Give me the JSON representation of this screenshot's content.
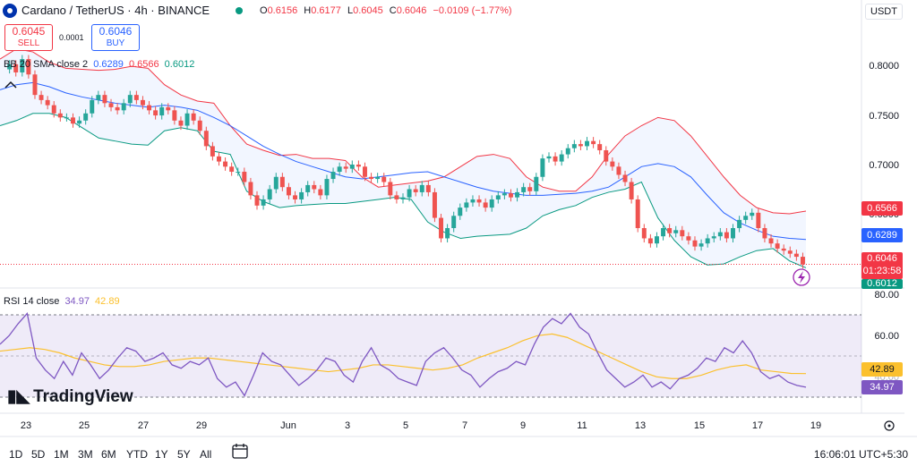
{
  "header": {
    "symbol": "Cardano / TetherUS · 4h · BINANCE",
    "open_label": "O",
    "open": "0.6156",
    "high_label": "H",
    "high": "0.6177",
    "low_label": "L",
    "low": "0.6045",
    "close_label": "C",
    "close": "0.6046",
    "change": "−0.0109 (−1.77%)",
    "currency": "USDT"
  },
  "trade": {
    "sell_price": "0.6045",
    "sell_label": "SELL",
    "spread": "0.0001",
    "buy_price": "0.6046",
    "buy_label": "BUY"
  },
  "bb": {
    "label": "BB 20 SMA close 2",
    "basis": "0.6289",
    "upper": "0.6566",
    "lower": "0.6012"
  },
  "rsi": {
    "label": "RSI 14 close",
    "value": "34.97",
    "ma": "42.89"
  },
  "price_axis": [
    "0.8000",
    "0.7500",
    "0.7000",
    "0.6500"
  ],
  "price_tags": {
    "upper": "0.6566",
    "basis": "0.6289",
    "last": "0.6046",
    "countdown": "01:23:58",
    "lower": "0.6012"
  },
  "rsi_axis": [
    "80.00",
    "60.00",
    "40.00"
  ],
  "x_axis": [
    "23",
    "25",
    "27",
    "29",
    "Jun",
    "3",
    "5",
    "7",
    "9",
    "11",
    "13",
    "15",
    "17",
    "19"
  ],
  "logo": "TradingView",
  "timeframes": [
    "1D",
    "5D",
    "1M",
    "3M",
    "6M",
    "YTD",
    "1Y",
    "5Y",
    "All"
  ],
  "clock": "16:06:01 UTC+5:30",
  "colors": {
    "up": "#26a69a",
    "down": "#ef5350",
    "basis": "#2962ff",
    "upper": "#f23645",
    "lower": "#089981",
    "rsi": "#7e57c2",
    "rsi_ma": "#fbc02d"
  },
  "chart_data": {
    "type": "line",
    "title": "Cardano / TetherUS · 4h · BINANCE",
    "price_ylim": [
      0.585,
      0.84
    ],
    "rsi_ylim": [
      25,
      85
    ],
    "x": [
      "23",
      "25",
      "27",
      "29",
      "Jun",
      "3",
      "5",
      "7",
      "9",
      "11",
      "13",
      "15",
      "17",
      "19"
    ],
    "candles_close": [
      0.795,
      0.8,
      0.792,
      0.805,
      0.79,
      0.77,
      0.765,
      0.76,
      0.752,
      0.748,
      0.748,
      0.742,
      0.745,
      0.752,
      0.765,
      0.77,
      0.762,
      0.758,
      0.755,
      0.762,
      0.77,
      0.765,
      0.76,
      0.755,
      0.75,
      0.758,
      0.755,
      0.745,
      0.74,
      0.752,
      0.745,
      0.735,
      0.72,
      0.71,
      0.705,
      0.7,
      0.695,
      0.695,
      0.685,
      0.672,
      0.662,
      0.668,
      0.678,
      0.69,
      0.68,
      0.672,
      0.668,
      0.675,
      0.682,
      0.678,
      0.672,
      0.688,
      0.695,
      0.7,
      0.698,
      0.702,
      0.7,
      0.69,
      0.688,
      0.69,
      0.685,
      0.672,
      0.668,
      0.67,
      0.678,
      0.675,
      0.682,
      0.675,
      0.65,
      0.63,
      0.64,
      0.652,
      0.66,
      0.665,
      0.668,
      0.665,
      0.66,
      0.668,
      0.672,
      0.674,
      0.67,
      0.675,
      0.68,
      0.676,
      0.69,
      0.708,
      0.71,
      0.705,
      0.712,
      0.718,
      0.722,
      0.72,
      0.725,
      0.722,
      0.716,
      0.705,
      0.7,
      0.692,
      0.685,
      0.668,
      0.64,
      0.63,
      0.625,
      0.632,
      0.64,
      0.635,
      0.638,
      0.632,
      0.628,
      0.622,
      0.625,
      0.63,
      0.632,
      0.636,
      0.63,
      0.64,
      0.648,
      0.652,
      0.655,
      0.64,
      0.63,
      0.625,
      0.62,
      0.618,
      0.615,
      0.612,
      0.6046
    ],
    "bb_basis": [
      0.775,
      0.78,
      0.782,
      0.778,
      0.772,
      0.768,
      0.765,
      0.762,
      0.76,
      0.758,
      0.76,
      0.758,
      0.755,
      0.748,
      0.74,
      0.73,
      0.72,
      0.712,
      0.705,
      0.7,
      0.695,
      0.69,
      0.688,
      0.69,
      0.692,
      0.694,
      0.695,
      0.69,
      0.685,
      0.68,
      0.676,
      0.674,
      0.672,
      0.672,
      0.673,
      0.674,
      0.676,
      0.68,
      0.69,
      0.7,
      0.703,
      0.7,
      0.69,
      0.672,
      0.655,
      0.645,
      0.638,
      0.632,
      0.63,
      0.6289
    ],
    "bb_upper": [
      0.805,
      0.815,
      0.812,
      0.802,
      0.796,
      0.795,
      0.794,
      0.795,
      0.798,
      0.796,
      0.78,
      0.77,
      0.764,
      0.762,
      0.74,
      0.722,
      0.716,
      0.711,
      0.712,
      0.708,
      0.708,
      0.706,
      0.69,
      0.68,
      0.682,
      0.684,
      0.686,
      0.69,
      0.7,
      0.71,
      0.712,
      0.708,
      0.69,
      0.68,
      0.676,
      0.676,
      0.69,
      0.712,
      0.73,
      0.74,
      0.748,
      0.745,
      0.73,
      0.71,
      0.69,
      0.672,
      0.66,
      0.655,
      0.654,
      0.6566
    ],
    "bb_lower": [
      0.74,
      0.745,
      0.752,
      0.752,
      0.748,
      0.738,
      0.728,
      0.725,
      0.722,
      0.721,
      0.735,
      0.738,
      0.735,
      0.715,
      0.712,
      0.676,
      0.666,
      0.66,
      0.662,
      0.663,
      0.664,
      0.664,
      0.666,
      0.668,
      0.67,
      0.668,
      0.646,
      0.636,
      0.63,
      0.632,
      0.633,
      0.634,
      0.64,
      0.652,
      0.658,
      0.662,
      0.67,
      0.675,
      0.678,
      0.685,
      0.65,
      0.628,
      0.612,
      0.604,
      0.605,
      0.612,
      0.618,
      0.62,
      0.608,
      0.6012
    ],
    "rsi": [
      60,
      65,
      72,
      78,
      52,
      45,
      40,
      50,
      42,
      55,
      48,
      40,
      45,
      52,
      58,
      56,
      50,
      52,
      55,
      48,
      46,
      50,
      48,
      52,
      40,
      35,
      38,
      30,
      42,
      55,
      50,
      48,
      42,
      36,
      40,
      45,
      52,
      50,
      42,
      38,
      50,
      58,
      48,
      45,
      40,
      38,
      36,
      50,
      55,
      58,
      52,
      45,
      42,
      35,
      40,
      44,
      46,
      50,
      48,
      60,
      70,
      75,
      72,
      78,
      70,
      66,
      55,
      45,
      40,
      35,
      38,
      42,
      35,
      38,
      34,
      40,
      42,
      46,
      52,
      50,
      58,
      55,
      62,
      55,
      44,
      40,
      42,
      38,
      36,
      34.97
    ],
    "rsi_ma": [
      56,
      57,
      58,
      57,
      55,
      52,
      50,
      48,
      47,
      47,
      48,
      50,
      51,
      52,
      52,
      51,
      50,
      49,
      48,
      47,
      46,
      45,
      44,
      45,
      46,
      48,
      48,
      47,
      46,
      45,
      46,
      48,
      52,
      55,
      58,
      62,
      65,
      66,
      64,
      60,
      56,
      52,
      48,
      44,
      41,
      40,
      40,
      42,
      45,
      47,
      48,
      45,
      44,
      43,
      42.89
    ],
    "rsi_levels": [
      70,
      50,
      30
    ]
  }
}
